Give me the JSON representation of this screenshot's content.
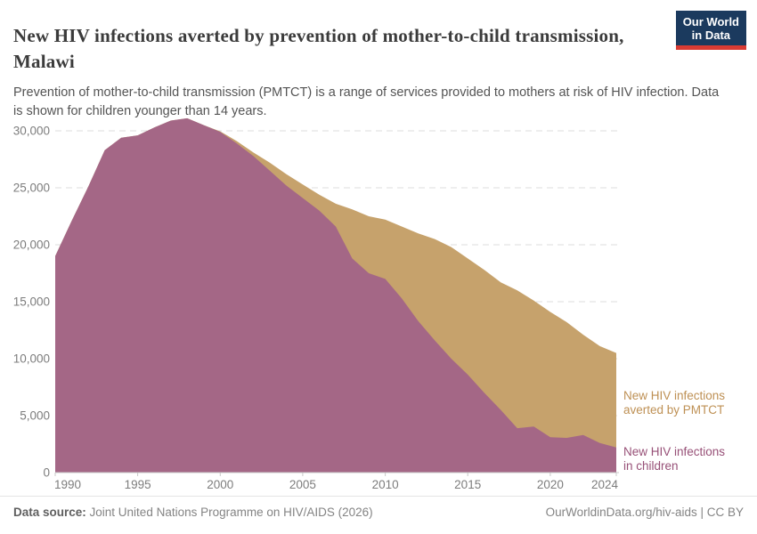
{
  "header": {
    "title": "New HIV infections averted by prevention of mother-to-child transmission, Malawi",
    "subtitle": "Prevention of mother-to-child transmission (PMTCT) is a range of services provided to mothers at risk of HIV infection. Data is shown for children younger than 14 years."
  },
  "logo": {
    "line1": "Our World",
    "line2": "in Data",
    "bg_color": "#1b3a5e",
    "accent_color": "#d93b33"
  },
  "colors": {
    "area_children": "#a46786",
    "area_averted": "#c6a26c",
    "label_children": "#975077",
    "label_averted": "#be9054",
    "axis_text": "#7d7d7d",
    "gridline": "#dddddd",
    "baseline": "#c8c8c8"
  },
  "annotations": {
    "averted": {
      "line1": "New HIV infections",
      "line2": "averted by PMTCT"
    },
    "children": {
      "line1": "New HIV infections",
      "line2": "in children"
    }
  },
  "footer": {
    "datasource_label": "Data source:",
    "datasource_text": " Joint United Nations Programme on HIV/AIDS (2026)",
    "credit": "OurWorldinData.org/hiv-aids | CC BY"
  },
  "chart_data": {
    "type": "area",
    "stacked": true,
    "title": "New HIV infections averted by prevention of mother-to-child transmission, Malawi",
    "xlabel": "",
    "ylabel": "",
    "ylim": [
      0,
      31500
    ],
    "grid": "horizontal-dashed",
    "legend": "right-inline-annotations",
    "x": [
      1990,
      1991,
      1992,
      1993,
      1994,
      1995,
      1996,
      1997,
      1998,
      1999,
      2000,
      2001,
      2002,
      2003,
      2004,
      2005,
      2006,
      2007,
      2008,
      2009,
      2010,
      2011,
      2012,
      2013,
      2014,
      2015,
      2016,
      2017,
      2018,
      2019,
      2020,
      2021,
      2022,
      2023,
      2024
    ],
    "series": [
      {
        "name": "New HIV infections in children",
        "color": "#a46786",
        "values": [
          19000,
          22100,
          25100,
          28300,
          29400,
          29600,
          30300,
          30900,
          31100,
          30500,
          29900,
          28900,
          27800,
          26500,
          25200,
          24100,
          23000,
          21600,
          18800,
          17500,
          17000,
          15300,
          13300,
          11600,
          10000,
          8600,
          7000,
          5500,
          3900,
          4050,
          3100,
          3050,
          3300,
          2600,
          2200
        ]
      },
      {
        "name": "New HIV infections averted by PMTCT",
        "color": "#c6a26c",
        "values": [
          0,
          0,
          0,
          0,
          0,
          0,
          0,
          0,
          0,
          0,
          50,
          200,
          300,
          700,
          1000,
          1200,
          1400,
          2000,
          4300,
          5000,
          5200,
          6300,
          7700,
          8900,
          9800,
          10200,
          10800,
          11200,
          12100,
          11050,
          11000,
          10150,
          8800,
          8500,
          8300
        ]
      }
    ],
    "yticks": [
      {
        "v": 0,
        "label": "0"
      },
      {
        "v": 5000,
        "label": "5,000"
      },
      {
        "v": 10000,
        "label": "10,000"
      },
      {
        "v": 15000,
        "label": "15,000"
      },
      {
        "v": 20000,
        "label": "20,000"
      },
      {
        "v": 25000,
        "label": "25,000"
      },
      {
        "v": 30000,
        "label": "30,000"
      }
    ],
    "xticks": [
      {
        "year": 1990,
        "label": "1990"
      },
      {
        "year": 1995,
        "label": "1995"
      },
      {
        "year": 2000,
        "label": "2000"
      },
      {
        "year": 2005,
        "label": "2005"
      },
      {
        "year": 2010,
        "label": "2010"
      },
      {
        "year": 2015,
        "label": "2015"
      },
      {
        "year": 2020,
        "label": "2020"
      },
      {
        "year": 2024,
        "label": "2024"
      }
    ]
  }
}
